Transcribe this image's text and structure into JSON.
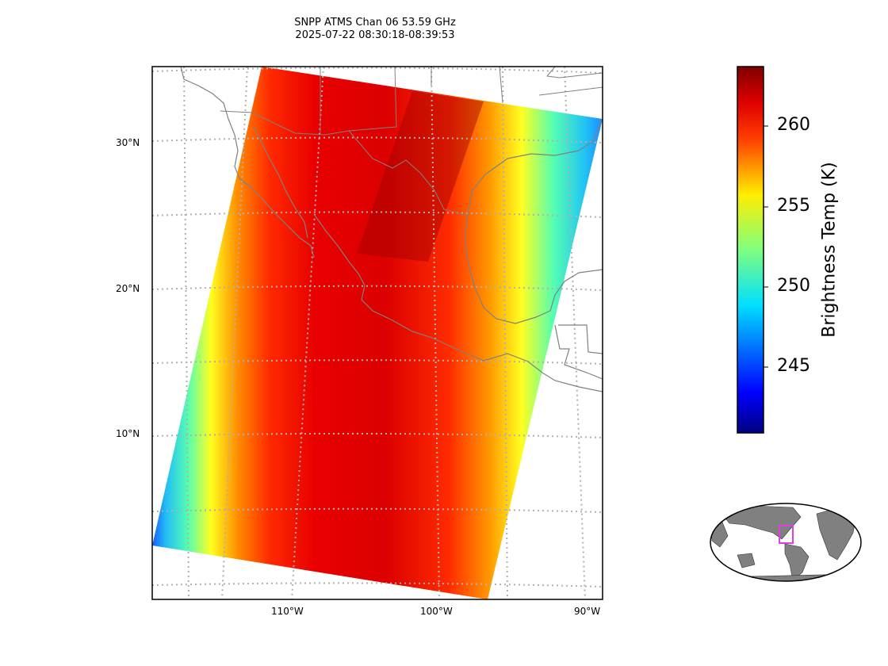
{
  "title": {
    "line1": "SNPP ATMS Chan 06 53.59 GHz",
    "line2": "2025-07-22 08:30:18-08:39:53"
  },
  "map": {
    "lat_ticks": [
      "30°N",
      "20°N",
      "10°N"
    ],
    "lon_ticks": [
      "110°W",
      "100°W",
      "90°W"
    ],
    "coastline_color": "#808080",
    "gridline_color": "#b0b0b0"
  },
  "colorbar": {
    "label": "Brightness Temp (K)",
    "ticks": [
      "260",
      "255",
      "250",
      "245"
    ],
    "colormap": "jet",
    "range": [
      241,
      264
    ]
  },
  "inset": {
    "box_color": "#e040e0",
    "land_color": "#808080"
  }
}
